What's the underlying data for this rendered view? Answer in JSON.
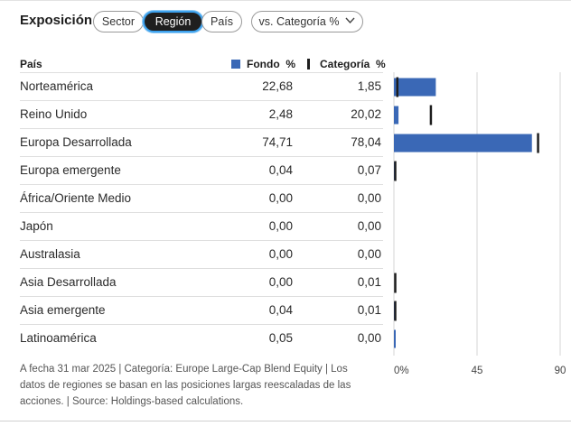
{
  "section": {
    "title": "Exposición"
  },
  "tabs": [
    {
      "label": "Sector",
      "active": false
    },
    {
      "label": "Región",
      "active": true
    },
    {
      "label": "País",
      "active": false
    }
  ],
  "compare_dropdown": {
    "label": "vs. Categoría %",
    "icon": "chevron-down-icon"
  },
  "table": {
    "headers": {
      "name": "País",
      "fund": "Fondo  %",
      "category": "Categoría  %"
    },
    "rows": [
      {
        "name": "Norteamérica",
        "fund": "22,68",
        "category": "1,85"
      },
      {
        "name": "Reino Unido",
        "fund": "2,48",
        "category": "20,02"
      },
      {
        "name": "Europa Desarrollada",
        "fund": "74,71",
        "category": "78,04"
      },
      {
        "name": "Europa emergente",
        "fund": "0,04",
        "category": "0,07"
      },
      {
        "name": "África/Oriente Medio",
        "fund": "0,00",
        "category": "0,00"
      },
      {
        "name": "Japón",
        "fund": "0,00",
        "category": "0,00"
      },
      {
        "name": "Australasia",
        "fund": "0,00",
        "category": "0,00"
      },
      {
        "name": "Asia Desarrollada",
        "fund": "0,00",
        "category": "0,01"
      },
      {
        "name": "Asia emergente",
        "fund": "0,04",
        "category": "0,01"
      },
      {
        "name": "Latinoamérica",
        "fund": "0,05",
        "category": "0,00"
      }
    ]
  },
  "chart_data": {
    "type": "bar",
    "orientation": "horizontal",
    "categories": [
      "Norteamérica",
      "Reino Unido",
      "Europa Desarrollada",
      "Europa emergente",
      "África/Oriente Medio",
      "Japón",
      "Australasia",
      "Asia Desarrollada",
      "Asia emergente",
      "Latinoamérica"
    ],
    "series": [
      {
        "name": "Fondo  %",
        "values": [
          22.68,
          2.48,
          74.71,
          0.04,
          0.0,
          0.0,
          0.0,
          0.0,
          0.04,
          0.05
        ]
      },
      {
        "name": "Categoría  %",
        "values": [
          1.85,
          20.02,
          78.04,
          0.07,
          0.0,
          0.0,
          0.0,
          0.01,
          0.01,
          0.0
        ]
      }
    ],
    "xlim": [
      0,
      90
    ],
    "xticks": [
      "0%",
      "45",
      "90"
    ],
    "grid": true,
    "colors": {
      "fund": "#3a68b6",
      "category": "#1e1e1e",
      "grid": "#d6d6d6"
    }
  },
  "footnote": "A fecha 31 mar 2025 | Categoría: Europe Large-Cap Blend Equity | Los datos de regiones se basan en las posiciones largas reescaladas de las acciones. | Source: Holdings-based calculations."
}
